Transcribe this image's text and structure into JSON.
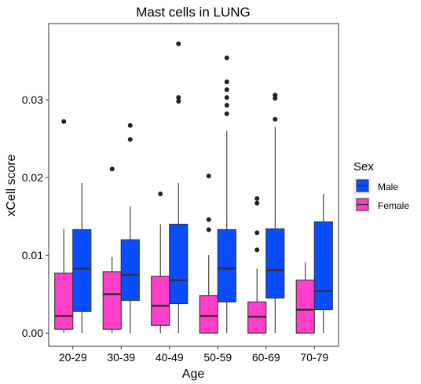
{
  "chart_data": {
    "type": "boxplot",
    "title": "Mast cells in LUNG",
    "xlabel": "Age",
    "ylabel": "xCell score",
    "ylim": [
      -0.0017,
      0.0398
    ],
    "yticks": [
      0,
      0.01,
      0.02,
      0.03
    ],
    "ytick_labels": [
      "0.00",
      "0.01",
      "0.02",
      "0.03"
    ],
    "grid": false,
    "legend": {
      "title": "Sex",
      "position": "right",
      "entries": [
        {
          "name": "Male",
          "color": "#0A4CFF"
        },
        {
          "name": "Female",
          "color": "#FF3FC8"
        }
      ]
    },
    "categories": [
      "20-29",
      "30-39",
      "40-49",
      "50-59",
      "60-69",
      "70-79"
    ],
    "series": [
      {
        "name": "Female",
        "color": "#FF3FC8",
        "boxes": [
          {
            "lower": 0.0,
            "q1": 0.0005,
            "median": 0.0022,
            "q3": 0.0077,
            "upper": 0.0134,
            "outliers": [
              0.0272
            ]
          },
          {
            "lower": 0.0,
            "q1": 0.0005,
            "median": 0.005,
            "q3": 0.0079,
            "upper": 0.0098,
            "outliers": [
              0.0211
            ]
          },
          {
            "lower": 0.0,
            "q1": 0.001,
            "median": 0.0035,
            "q3": 0.0073,
            "upper": 0.014,
            "outliers": [
              0.0179
            ]
          },
          {
            "lower": 0.0,
            "q1": 0.0,
            "median": 0.0022,
            "q3": 0.0048,
            "upper": 0.01,
            "outliers": [
              0.0202,
              0.0146,
              0.0133
            ]
          },
          {
            "lower": 0.0,
            "q1": 0.0,
            "median": 0.0021,
            "q3": 0.004,
            "upper": 0.0083,
            "outliers": [
              0.0173,
              0.0167,
              0.0129,
              0.0107
            ]
          },
          {
            "lower": 0.0,
            "q1": 0.0,
            "median": 0.003,
            "q3": 0.0068,
            "upper": 0.0091,
            "outliers": []
          }
        ]
      },
      {
        "name": "Male",
        "color": "#0A4CFF",
        "boxes": [
          {
            "lower": 0.0,
            "q1": 0.0028,
            "median": 0.0083,
            "q3": 0.0133,
            "upper": 0.0193,
            "outliers": []
          },
          {
            "lower": 0.0,
            "q1": 0.0042,
            "median": 0.0075,
            "q3": 0.012,
            "upper": 0.0163,
            "outliers": [
              0.0267,
              0.0249
            ]
          },
          {
            "lower": 0.0,
            "q1": 0.0038,
            "median": 0.0068,
            "q3": 0.014,
            "upper": 0.0193,
            "outliers": [
              0.0372,
              0.0303,
              0.0298
            ]
          },
          {
            "lower": 0.0,
            "q1": 0.004,
            "median": 0.0083,
            "q3": 0.0133,
            "upper": 0.026,
            "outliers": [
              0.0354,
              0.0323,
              0.0313,
              0.0303,
              0.0293,
              0.0282
            ]
          },
          {
            "lower": 0.0,
            "q1": 0.0045,
            "median": 0.0081,
            "q3": 0.0134,
            "upper": 0.0265,
            "outliers": [
              0.0306,
              0.0302,
              0.0275
            ]
          },
          {
            "lower": 0.0,
            "q1": 0.003,
            "median": 0.0054,
            "q3": 0.0143,
            "upper": 0.0179,
            "outliers": []
          }
        ]
      }
    ]
  }
}
